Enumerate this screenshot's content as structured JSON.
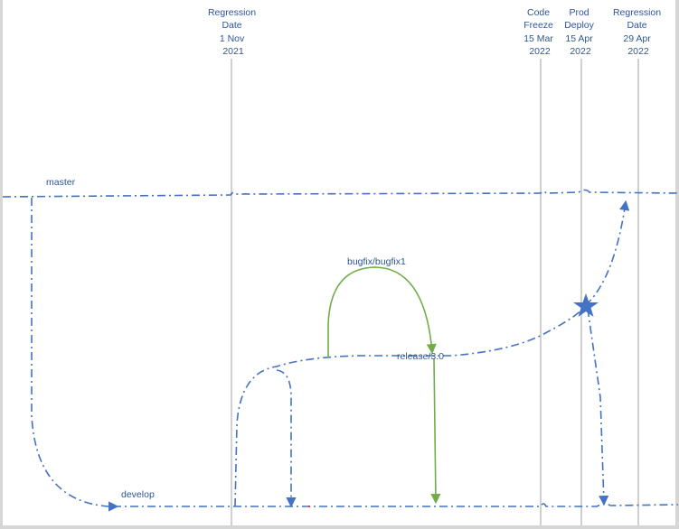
{
  "milestones": [
    {
      "lines": [
        "Regression",
        "Date",
        "1 Nov",
        "2021"
      ]
    },
    {
      "lines": [
        "Code",
        "Freeze",
        "15 Mar",
        "2022"
      ]
    },
    {
      "lines": [
        "Prod",
        "Deploy",
        "15 Apr",
        "2022"
      ]
    },
    {
      "lines": [
        "Regression",
        "Date",
        "29 Apr",
        "2022"
      ]
    }
  ],
  "branches": {
    "master": "master",
    "develop": "develop",
    "release": "release/3.0",
    "bugfix": "bugfix/bugfix1"
  },
  "colors": {
    "branch_line": "#4472c4",
    "bugfix_line": "#70ad47",
    "label_text": "#2e5597",
    "milestone_line": "#d0d0d0",
    "background": "#ffffff",
    "border": "#d6d6d6"
  },
  "icons": {
    "deploy_marker": "star-icon"
  }
}
